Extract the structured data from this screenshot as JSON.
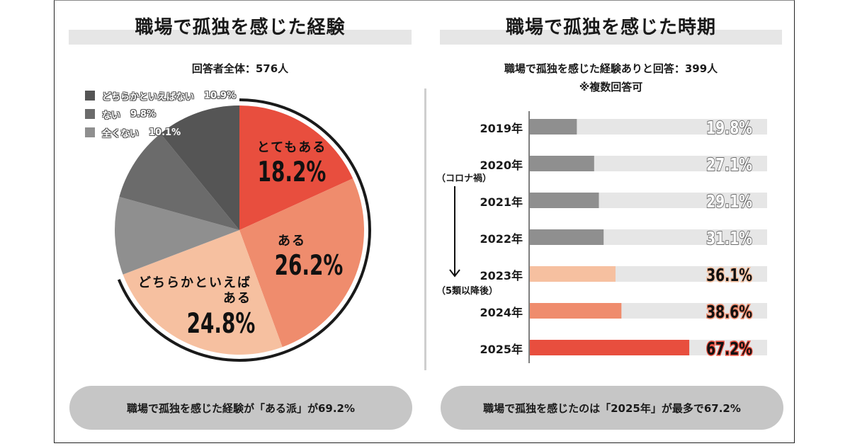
{
  "left": {
    "title": "職場で孤独を感じた経験",
    "subtitle": "回答者全体：576人",
    "summary": "職場で孤独を感じた経験が「ある派」が69.2%"
  },
  "right": {
    "title": "職場で孤独を感じた時期",
    "subtitle_line1": "職場で孤独を感じた経験ありと回答：399人",
    "subtitle_line2": "※複数回答可",
    "note_top": "（コロナ禍）",
    "note_bottom": "（5類以降後）",
    "arrow_icon": "down-arrow",
    "summary": "職場で孤独を感じたのは「2025年」が最多で67.2%"
  },
  "chart_data": [
    {
      "type": "pie",
      "title": "職場で孤独を感じた経験",
      "subtitle": "回答者全体：576人",
      "slices": [
        {
          "label": "とてもある",
          "value": 18.2,
          "display": "18.2%",
          "color": "#e84e3e",
          "label_color": "#111111"
        },
        {
          "label": "ある",
          "value": 26.2,
          "display": "26.2%",
          "color": "#ef8c6d",
          "label_color": "#111111"
        },
        {
          "label": "どちらかといえばある",
          "label_lines": [
            "どちらかといえば",
            "ある"
          ],
          "value": 24.8,
          "display": "24.8%",
          "color": "#f6c0a0",
          "label_color": "#111111"
        },
        {
          "label": "全くない",
          "value": 10.1,
          "display": "10.1%",
          "color": "#8f8f8f"
        },
        {
          "label": "ない",
          "value": 9.8,
          "display": "9.8%",
          "color": "#6b6b6b"
        },
        {
          "label": "どちらかといえばない",
          "value": 10.9,
          "display": "10.9%",
          "color": "#555555"
        }
      ],
      "legend": [
        {
          "label": "どちらかといえばない",
          "display": "10.9%",
          "color": "#555555"
        },
        {
          "label": "ない",
          "display": "9.8%",
          "color": "#6b6b6b"
        },
        {
          "label": "全くない",
          "display": "10.1%",
          "color": "#8f8f8f"
        }
      ],
      "legend_position": "top-left",
      "highlight_group": {
        "label": "ある派",
        "value": 69.2
      }
    },
    {
      "type": "bar",
      "orientation": "horizontal",
      "title": "職場で孤独を感じた時期",
      "subtitle": "職場で孤独を感じた経験ありと回答：399人 ※複数回答可",
      "categories": [
        "2019年",
        "2020年",
        "2021年",
        "2022年",
        "2023年",
        "2024年",
        "2025年"
      ],
      "values": [
        19.8,
        27.1,
        29.1,
        31.1,
        36.1,
        38.6,
        67.2
      ],
      "labels": [
        "19.8%",
        "27.1%",
        "29.1%",
        "31.1%",
        "36.1%",
        "38.6%",
        "67.2%"
      ],
      "colors": [
        "#8f8f8f",
        "#8f8f8f",
        "#8f8f8f",
        "#8f8f8f",
        "#f6c0a0",
        "#ef8c6d",
        "#e84e3e"
      ],
      "label_styles": [
        "muted",
        "muted",
        "muted",
        "muted",
        "emph",
        "emph",
        "emph"
      ],
      "track_color": "#e6e6e6",
      "xlim": [
        0,
        100
      ],
      "xlabel": "",
      "ylabel": "",
      "grid": false
    }
  ]
}
